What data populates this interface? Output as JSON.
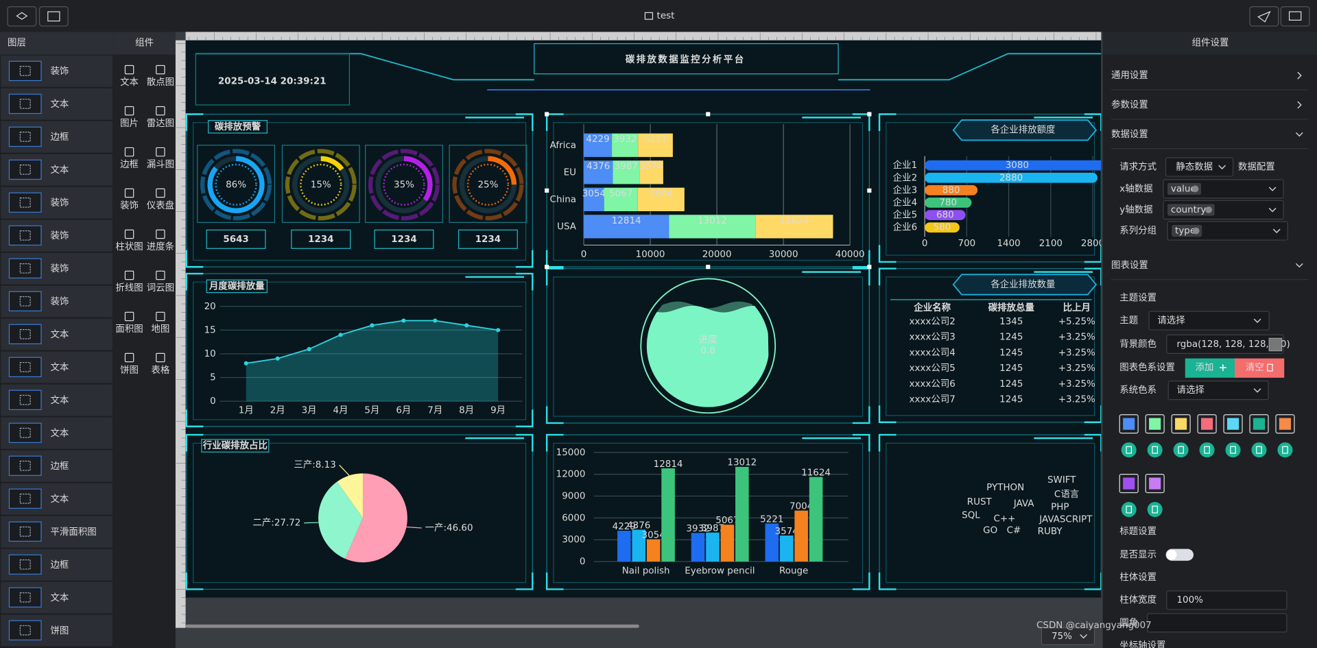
{
  "topbar": {
    "title": "test"
  },
  "layers": {
    "title": "图层",
    "items": [
      "装饰",
      "文本",
      "边框",
      "文本",
      "装饰",
      "装饰",
      "装饰",
      "装饰",
      "文本",
      "文本",
      "文本",
      "文本",
      "边框",
      "文本",
      "平滑面积图",
      "边框",
      "文本",
      "饼图"
    ]
  },
  "components": {
    "title": "组件",
    "items": [
      "文本",
      "散点图",
      "图片",
      "雷达图",
      "边框",
      "漏斗图",
      "装饰",
      "仪表盘",
      "柱状图",
      "进度条",
      "折线图",
      "词云图",
      "面积图",
      "地图",
      "饼图",
      "表格"
    ]
  },
  "screen": {
    "title": "碳排放数据监控分析平台",
    "datetime": "2025-03-14 20:39:21"
  },
  "chart_data": [
    {
      "type": "gauge",
      "title": "碳排放预警",
      "values": [
        86,
        15,
        35,
        25
      ],
      "value_labels": [
        "86%",
        "15%",
        "35%",
        "25%"
      ],
      "totals": [
        5643,
        1234,
        1234,
        1234
      ],
      "colors": [
        "#1aa4f5",
        "#f5d20a",
        "#b620e6",
        "#f56a0a"
      ],
      "ylim": [
        0,
        100
      ]
    },
    {
      "type": "stacked_hbar",
      "categories": [
        "Africa",
        "EU",
        "China",
        "USA"
      ],
      "series": [
        {
          "color": "#4d8df5",
          "values": [
            4229,
            4376,
            3054,
            12814
          ]
        },
        {
          "color": "#7ff5a5",
          "values": [
            3932,
            3987,
            5067,
            13012
          ]
        },
        {
          "color": "#ffd966",
          "values": [
            5221,
            3574,
            7004,
            11624
          ]
        }
      ],
      "xlim": [
        0,
        40000
      ],
      "xticks": [
        0,
        10000,
        20000,
        30000,
        40000
      ],
      "grid": true
    },
    {
      "type": "hbar",
      "title": "各企业排放额度",
      "categories": [
        "企业1",
        "企业2",
        "企业3",
        "企业4",
        "企业5",
        "企业6"
      ],
      "values": [
        3080,
        2880,
        880,
        780,
        680,
        580
      ],
      "colors": [
        "#1e6cf0",
        "#1ab4f0",
        "#f5821f",
        "#3cc47c",
        "#8e4ff0",
        "#f5c518"
      ],
      "xlim": [
        0,
        2800
      ],
      "xticks": [
        0,
        700,
        1400,
        2100,
        2800
      ],
      "grid": true
    },
    {
      "type": "area",
      "title": "月度碳排放量",
      "categories": [
        "1月",
        "2月",
        "3月",
        "4月",
        "5月",
        "6月",
        "7月",
        "8月",
        "9月"
      ],
      "values": [
        8,
        9,
        11,
        14,
        16,
        17,
        17,
        16,
        15
      ],
      "ylim": [
        0,
        20
      ],
      "yticks": [
        0,
        5,
        10,
        15,
        20
      ],
      "color": "#2ad4e0",
      "grid": true
    },
    {
      "type": "liquid",
      "label": "进度",
      "value": 0.8,
      "color": "#7cf5c4"
    },
    {
      "type": "pie",
      "title": "行业碳排放占比",
      "values": [
        46.6,
        27.72,
        8.13
      ],
      "value_labels": [
        "一产:46.60",
        "二产:27.72",
        "三产:8.13"
      ],
      "colors": [
        "#ff9eb4",
        "#8ef5cc",
        "#fdf59a"
      ]
    },
    {
      "type": "grouped_bar",
      "categories": [
        "Nail polish",
        "Eyebrow pencil",
        "Rouge"
      ],
      "series": [
        {
          "color": "#1e6cf0",
          "values": [
            4229,
            3932,
            5221
          ]
        },
        {
          "color": "#1ab4f0",
          "values": [
            4376,
            3987,
            3574
          ]
        },
        {
          "color": "#f5821f",
          "values": [
            3054,
            5067,
            7004
          ]
        },
        {
          "color": "#3cc47c",
          "values": [
            12814,
            13012,
            11624
          ]
        }
      ],
      "ylim": [
        0,
        15000
      ],
      "yticks": [
        0,
        3000,
        6000,
        9000,
        12000,
        15000
      ],
      "grid": true
    }
  ],
  "table": {
    "title": "各企业排放数量",
    "columns": [
      "企业名称",
      "碳排放总量",
      "比上月"
    ],
    "rows": [
      [
        "xxxx公司2",
        "1345",
        "+5.25%"
      ],
      [
        "xxxx公司3",
        "1245",
        "+3.25%"
      ],
      [
        "xxxx公司4",
        "1245",
        "+3.25%"
      ],
      [
        "xxxx公司5",
        "1245",
        "+3.25%"
      ],
      [
        "xxxx公司6",
        "1245",
        "+3.25%"
      ],
      [
        "xxxx公司7",
        "1245",
        "+3.25%"
      ]
    ]
  },
  "word_cloud": {
    "words": [
      "PYTHON",
      "SWIFT",
      "C语言",
      "RUST",
      "JAVA",
      "PHP",
      "SQL",
      "C++",
      "JAVASCRIPT",
      "GO",
      "C#",
      "RUBY"
    ]
  },
  "settings": {
    "title": "组件设置",
    "sections": [
      "通用设置",
      "参数设置",
      "数据设置"
    ],
    "request_label": "请求方式",
    "request_value": "静态数据",
    "data_config": "数据配置",
    "x_label": "x轴数据",
    "x_tag": "value",
    "y_label": "y轴数据",
    "y_tag": "country",
    "group_label": "系列分组",
    "group_tag": "type",
    "chart_settings": "图表设置",
    "theme_settings": "主题设置",
    "theme_label": "主题",
    "theme_placeholder": "请选择",
    "bg_label": "背景颜色",
    "bg_value": "rgba(128, 128, 128, 0.0)",
    "palette_label": "图表色系设置",
    "add_button": "添加",
    "clear_button": "清空",
    "system_palette_label": "系统色系",
    "system_palette_placeholder": "请选择",
    "palette": [
      "#4d8df5",
      "#7ff5a5",
      "#ffd966",
      "#f56c7c",
      "#5ad8f5",
      "#1ab394",
      "#f58a4a",
      "#a050f0",
      "#c77cf5"
    ],
    "title_settings": "标题设置",
    "show_label": "是否显示",
    "show_title": false,
    "bar_settings": "柱体设置",
    "bar_width_label": "柱体宽度",
    "bar_width_value": "100%",
    "radius_label": "圆角",
    "axis_settings": "坐标轴设置"
  },
  "zoom": "75%",
  "watermark": "CSDN @caiyangyang007"
}
